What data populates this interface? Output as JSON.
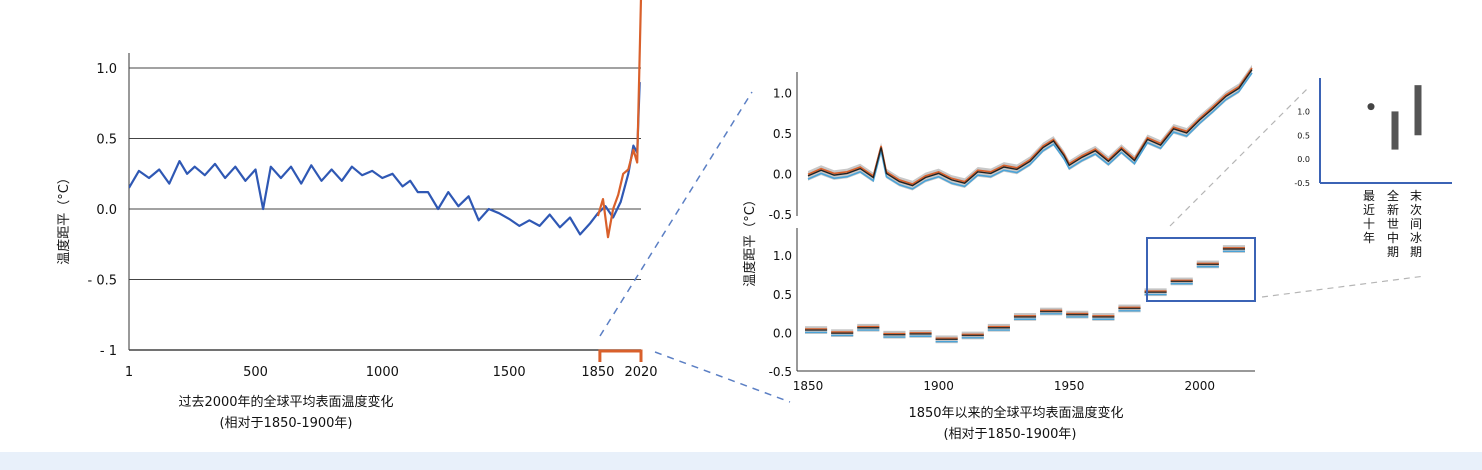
{
  "chart_data": [
    {
      "id": "left",
      "type": "line",
      "caption_line1": "过去2000年的全球平均表面温度变化",
      "caption_line2": "(相对于1850-1900年)",
      "ylabel": "温度距平（°C）",
      "xlim": [
        1,
        2020
      ],
      "ylim": [
        -1.0,
        1.0
      ],
      "x_ticks": [
        "1",
        "500",
        "1000",
        "1500",
        "1850",
        "2020"
      ],
      "x_tick_values": [
        1,
        500,
        1000,
        1500,
        1850,
        2020
      ],
      "y_ticks": [
        "1.0",
        "0.5",
        "0.0",
        "- 0.5",
        "- 1"
      ],
      "y_tick_values": [
        1.0,
        0.5,
        0.0,
        -0.5,
        -1.0
      ],
      "grid": "horizontal",
      "series": [
        {
          "color": "#2f58b4",
          "x": [
            1,
            40,
            80,
            120,
            160,
            200,
            230,
            260,
            300,
            340,
            380,
            420,
            460,
            500,
            530,
            560,
            600,
            640,
            680,
            720,
            760,
            800,
            840,
            880,
            920,
            960,
            1000,
            1040,
            1080,
            1110,
            1140,
            1180,
            1220,
            1260,
            1300,
            1340,
            1380,
            1420,
            1460,
            1500,
            1540,
            1580,
            1620,
            1660,
            1700,
            1740,
            1780,
            1820,
            1850,
            1880,
            1910,
            1940,
            1970,
            1990,
            2005,
            2015
          ],
          "y": [
            0.15,
            0.27,
            0.22,
            0.28,
            0.18,
            0.34,
            0.25,
            0.3,
            0.24,
            0.32,
            0.22,
            0.3,
            0.2,
            0.28,
            0.0,
            0.3,
            0.22,
            0.3,
            0.18,
            0.31,
            0.2,
            0.28,
            0.2,
            0.3,
            0.24,
            0.27,
            0.22,
            0.25,
            0.16,
            0.2,
            0.12,
            0.12,
            0.0,
            0.12,
            0.02,
            0.09,
            -0.08,
            0.0,
            -0.03,
            -0.07,
            -0.12,
            -0.08,
            -0.12,
            -0.04,
            -0.13,
            -0.06,
            -0.18,
            -0.1,
            -0.03,
            0.02,
            -0.06,
            0.05,
            0.25,
            0.45,
            0.4,
            0.9
          ]
        },
        {
          "color": "#d9602b",
          "x": [
            1850,
            1870,
            1890,
            1910,
            1930,
            1950,
            1970,
            1990,
            2005,
            2020
          ],
          "y": [
            -0.05,
            0.07,
            -0.2,
            0.0,
            0.1,
            0.25,
            0.28,
            0.42,
            0.33,
            1.5
          ]
        }
      ]
    },
    {
      "id": "right-top",
      "type": "line",
      "xlim": [
        1850,
        2020
      ],
      "ylim": [
        -0.5,
        1.3
      ],
      "y_ticks": [
        "1.0",
        "0.5",
        "0.0",
        "-0.5"
      ],
      "y_tick_values": [
        1.0,
        0.5,
        0.0,
        -0.5
      ],
      "series": [
        {
          "color": "#222222",
          "x": [
            1850,
            1855,
            1860,
            1865,
            1870,
            1875,
            1878,
            1880,
            1885,
            1890,
            1895,
            1900,
            1905,
            1910,
            1915,
            1920,
            1925,
            1930,
            1935,
            1940,
            1944,
            1948,
            1950,
            1955,
            1960,
            1965,
            1970,
            1975,
            1980,
            1985,
            1990,
            1995,
            2000,
            2005,
            2010,
            2015,
            2020
          ],
          "y": [
            -0.03,
            0.04,
            -0.02,
            0.0,
            0.06,
            -0.05,
            0.32,
            0.0,
            -0.1,
            -0.15,
            -0.05,
            0.0,
            -0.08,
            -0.12,
            0.02,
            0.0,
            0.08,
            0.05,
            0.15,
            0.32,
            0.4,
            0.22,
            0.1,
            0.2,
            0.28,
            0.15,
            0.3,
            0.16,
            0.42,
            0.35,
            0.55,
            0.5,
            0.66,
            0.8,
            0.95,
            1.05,
            1.28
          ]
        }
      ]
    },
    {
      "id": "right-bottom",
      "type": "bar",
      "xlim": [
        1845,
        2022
      ],
      "ylim": [
        -0.5,
        1.3
      ],
      "x_ticks": [
        "1850",
        "1900",
        "1950",
        "2000"
      ],
      "x_tick_values": [
        1850,
        1900,
        1950,
        2000
      ],
      "y_ticks": [
        "1.0",
        "0.5",
        "0.0",
        "-0.5"
      ],
      "y_tick_values": [
        1.0,
        0.5,
        0.0,
        -0.5
      ],
      "decades": [
        1850,
        1860,
        1870,
        1880,
        1890,
        1900,
        1910,
        1920,
        1930,
        1940,
        1950,
        1960,
        1970,
        1980,
        1990,
        2000,
        2010
      ],
      "values": [
        0.03,
        -0.01,
        0.06,
        -0.03,
        -0.02,
        -0.09,
        -0.04,
        0.06,
        0.2,
        0.27,
        0.23,
        0.2,
        0.31,
        0.52,
        0.66,
        0.88,
        1.08
      ]
    },
    {
      "id": "inset",
      "type": "scatter",
      "ylim": [
        -0.5,
        1.7
      ],
      "y_ticks": [
        "1.0",
        "0.5",
        "0.0",
        "-0.5"
      ],
      "y_tick_values": [
        1.0,
        0.5,
        0.0,
        -0.5
      ],
      "x_labels": [
        "最近十年",
        "全新世中期",
        "末次间冰期"
      ],
      "ranges": [
        [
          1.05,
          1.15
        ],
        [
          0.2,
          1.0
        ],
        [
          0.5,
          1.55
        ]
      ],
      "points": [
        1.1,
        null,
        null
      ]
    }
  ],
  "colors": {
    "blue": "#2f58b4",
    "orange": "#d9602b",
    "frame_blue": "#3b63b5",
    "dash": "#5b7fc4"
  },
  "right_shared_ylabel": "温度距平（°C）",
  "right_caption_line1": "1850年以来的全球平均表面温度变化",
  "right_caption_line2": "(相对于1850-1900年)"
}
